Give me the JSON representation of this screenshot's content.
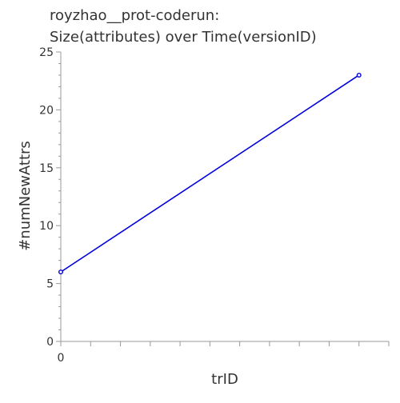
{
  "chart_data": {
    "type": "line",
    "title_line1": "royzhao__prot-coderun:",
    "title_line2": "Size(attributes) over Time(versionID)",
    "xlabel": "trID",
    "ylabel": "#numNewAttrs",
    "xlim": [
      0,
      11
    ],
    "ylim": [
      0,
      25
    ],
    "x_ticks": [
      0,
      1,
      2,
      3,
      4,
      5,
      6,
      7,
      8,
      9,
      10,
      11
    ],
    "x_tick_labels": [
      "0"
    ],
    "y_ticks_major": [
      0,
      5,
      10,
      15,
      20,
      25
    ],
    "y_ticks_minor": [
      1,
      2,
      3,
      4,
      6,
      7,
      8,
      9,
      11,
      12,
      13,
      14,
      16,
      17,
      18,
      19,
      21,
      22,
      23,
      24
    ],
    "grid": false,
    "legend": "none",
    "series": [
      {
        "x": [
          0,
          10
        ],
        "y": [
          6,
          23
        ],
        "color": "#0000dd"
      }
    ]
  }
}
